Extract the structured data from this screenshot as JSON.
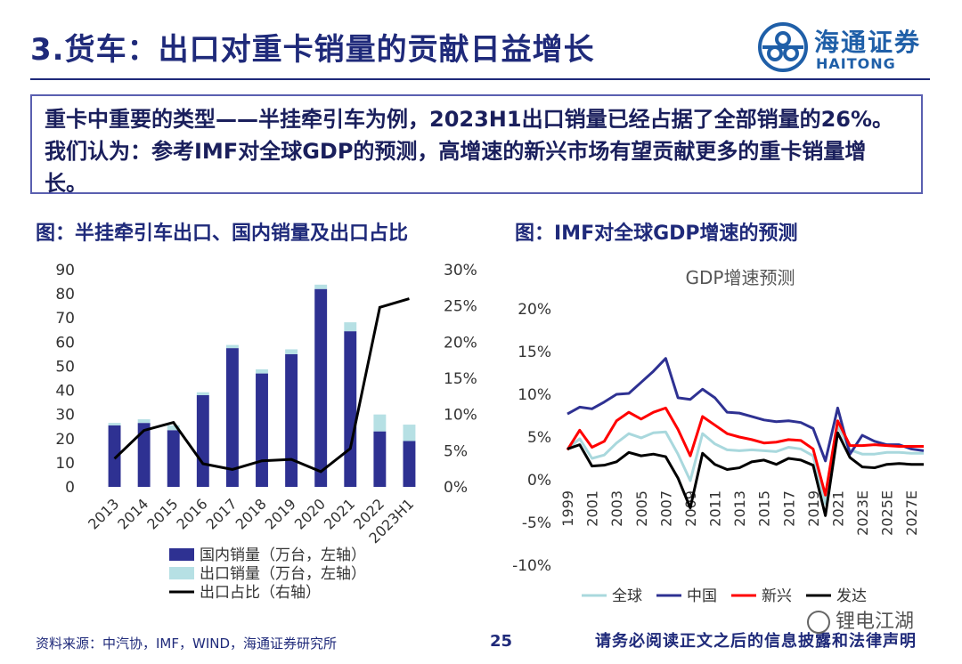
{
  "header": {
    "title": "3.货车：出口对重卡销量的贡献日益增长",
    "logo_cn": "海通证券",
    "logo_en": "HAITONG"
  },
  "summary": {
    "text": "重卡中重要的类型——半挂牵引车为例，2023H1出口销量已经占据了全部销量的26%。我们认为：参考IMF对全球GDP的预测，高增速的新兴市场有望贡献更多的重卡销量增长。"
  },
  "captions": {
    "left": "图：半挂牵引车出口、国内销量及出口占比",
    "right": "图：IMF对全球GDP增速的预测"
  },
  "footer": {
    "source": "资料来源：中汽协，IMF，WIND，海通证券研究所",
    "page": "25",
    "note": "请务必阅读正文之后的信息披露和法律声明",
    "watermark": "锂电江湖"
  },
  "chart_data": [
    {
      "type": "bar",
      "stacked": true,
      "categories": [
        "2013",
        "2014",
        "2015",
        "2016",
        "2017",
        "2018",
        "2019",
        "2020",
        "2021",
        "2022",
        "2023H1"
      ],
      "series": [
        {
          "name": "国内销量（万台，左轴）",
          "color": "#2e3192",
          "values": [
            25.5,
            26.5,
            23.5,
            38,
            57.5,
            47,
            55,
            82,
            64.5,
            23,
            19
          ]
        },
        {
          "name": "出口销量（万台，左轴）",
          "color": "#b6e0e4",
          "values": [
            1.0,
            1.5,
            2.0,
            1.2,
            1.3,
            1.7,
            2.0,
            1.8,
            3.7,
            7.0,
            6.8
          ]
        },
        {
          "name": "出口占比（右轴）",
          "type": "line",
          "axis": "right",
          "color": "#000000",
          "values": [
            3.9,
            7.8,
            8.9,
            3.2,
            2.4,
            3.6,
            3.8,
            2.1,
            5.3,
            24.8,
            26.0
          ]
        }
      ],
      "y_left": {
        "min": 0,
        "max": 90,
        "ticks": [
          0,
          10,
          20,
          30,
          40,
          50,
          60,
          70,
          80,
          90
        ]
      },
      "y_right": {
        "min": 0,
        "max": 30,
        "ticks": [
          "0%",
          "5%",
          "10%",
          "15%",
          "20%",
          "25%",
          "30%"
        ]
      },
      "legend_position": "bottom"
    },
    {
      "type": "line",
      "title": "GDP增速预测",
      "x": [
        "1999",
        "2000",
        "2001",
        "2002",
        "2003",
        "2004",
        "2005",
        "2006",
        "2007",
        "2008",
        "2009",
        "2010",
        "2011",
        "2012",
        "2013",
        "2014",
        "2015",
        "2016",
        "2017",
        "2018",
        "2019",
        "2020",
        "2021",
        "2022",
        "2023E",
        "2024E",
        "2025E",
        "2026E",
        "2027E",
        "2028E"
      ],
      "x_tick_labels": [
        "1999",
        "2001",
        "2003",
        "2005",
        "2007",
        "2009",
        "2011",
        "2013",
        "2015",
        "2017",
        "2019",
        "2021",
        "2023E",
        "2025E",
        "2027E"
      ],
      "series": [
        {
          "name": "全球",
          "color": "#a9d8dd",
          "values": [
            3.6,
            4.8,
            2.5,
            2.9,
            4.3,
            5.4,
            4.9,
            5.5,
            5.6,
            3.0,
            -0.1,
            5.4,
            4.2,
            3.5,
            3.4,
            3.5,
            3.4,
            3.3,
            3.8,
            3.6,
            2.8,
            -2.8,
            6.3,
            3.5,
            3.0,
            3.0,
            3.2,
            3.2,
            3.1,
            3.1
          ]
        },
        {
          "name": "中国",
          "color": "#2e3192",
          "values": [
            7.7,
            8.5,
            8.3,
            9.1,
            10.0,
            10.1,
            11.4,
            12.7,
            14.2,
            9.6,
            9.4,
            10.6,
            9.6,
            7.9,
            7.8,
            7.4,
            7.0,
            6.8,
            6.9,
            6.7,
            6.0,
            2.2,
            8.4,
            3.0,
            5.2,
            4.5,
            4.1,
            4.1,
            3.6,
            3.4
          ]
        },
        {
          "name": "新兴",
          "color": "#ff0000",
          "values": [
            3.5,
            5.8,
            3.8,
            4.5,
            6.9,
            7.9,
            7.1,
            7.9,
            8.4,
            5.9,
            2.8,
            7.4,
            6.4,
            5.4,
            5.0,
            4.7,
            4.3,
            4.4,
            4.7,
            4.6,
            3.6,
            -1.8,
            6.9,
            4.0,
            4.0,
            4.1,
            4.0,
            3.9,
            3.9,
            3.9
          ]
        },
        {
          "name": "发达",
          "color": "#000000",
          "values": [
            3.6,
            4.1,
            1.6,
            1.7,
            2.1,
            3.2,
            2.8,
            3.0,
            2.7,
            0.2,
            -3.3,
            3.1,
            1.8,
            1.2,
            1.4,
            2.1,
            2.3,
            1.8,
            2.5,
            2.3,
            1.7,
            -4.2,
            5.5,
            2.6,
            1.5,
            1.4,
            1.8,
            1.9,
            1.8,
            1.8
          ]
        }
      ],
      "y": {
        "min": -10,
        "max": 20,
        "ticks": [
          "-10%",
          "-5%",
          "0%",
          "5%",
          "10%",
          "15%",
          "20%"
        ]
      },
      "legend_position": "bottom"
    }
  ]
}
